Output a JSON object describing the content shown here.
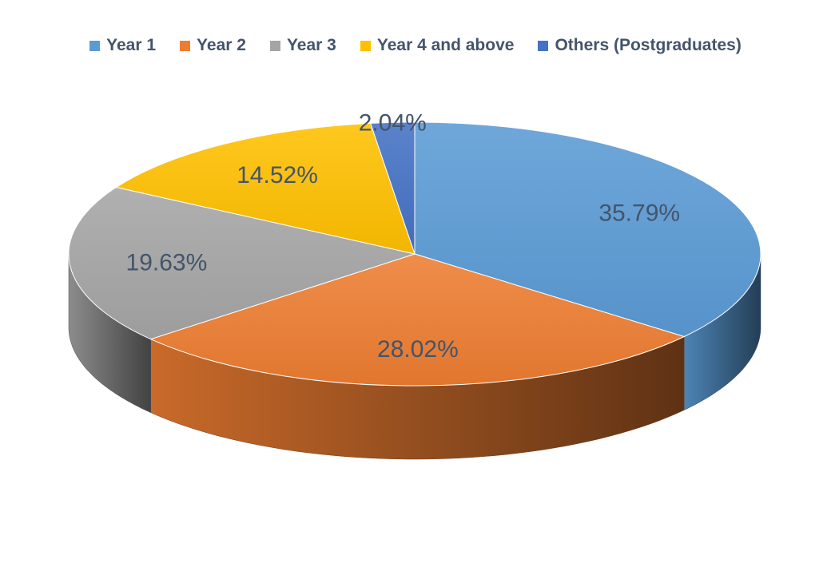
{
  "chart_data": {
    "type": "pie",
    "style": "3d",
    "categories": [
      "Year 1",
      "Year 2",
      "Year 3",
      "Year 4 and above",
      "Others (Postgraduates)"
    ],
    "values": [
      35.79,
      28.02,
      19.63,
      14.52,
      2.04
    ],
    "data_labels": [
      "35.79%",
      "28.02%",
      "19.63%",
      "14.52%",
      "2.04%"
    ],
    "colors": [
      "#5B9BD5",
      "#ED7D31",
      "#A5A5A5",
      "#FFC000",
      "#4472C4"
    ],
    "legend_position": "top",
    "title": ""
  }
}
